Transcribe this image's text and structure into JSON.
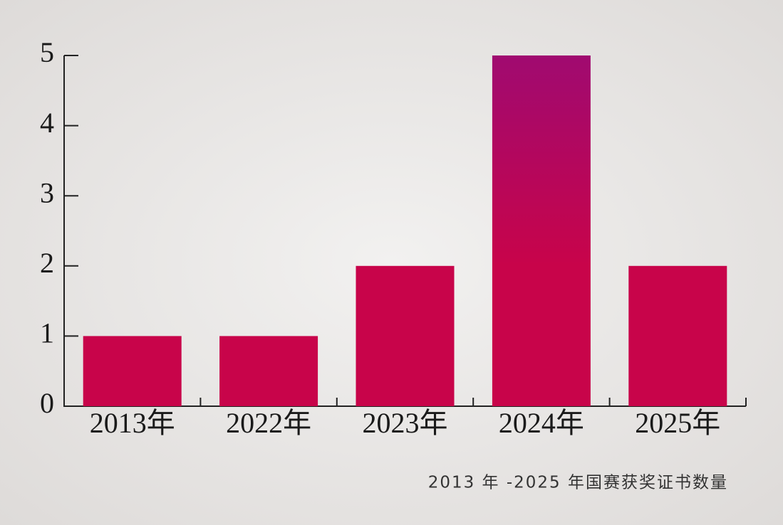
{
  "chart_data": {
    "type": "bar",
    "caption": "2013 年 -2025 年国赛获奖证书数量",
    "categories": [
      "2013年",
      "2022年",
      "2023年",
      "2024年",
      "2025年"
    ],
    "values": [
      1,
      1,
      2,
      5,
      2
    ],
    "color": "#c8044a",
    "color_top": "#a00a70",
    "ylim": [
      0,
      5
    ],
    "yticks": [
      0,
      1,
      2,
      3,
      4,
      5
    ]
  }
}
